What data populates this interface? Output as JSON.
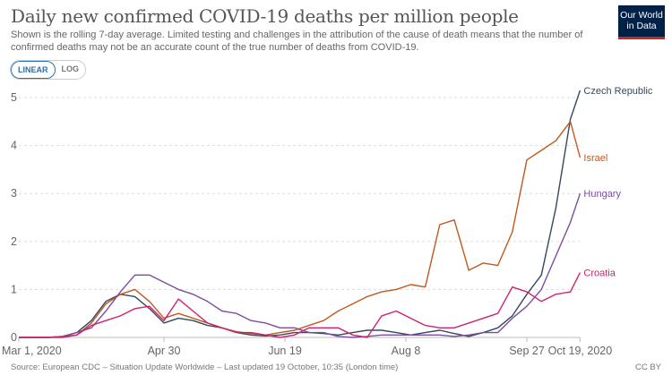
{
  "header": {
    "title": "Daily new confirmed COVID-19 deaths per million people",
    "subtitle": "Shown is the rolling 7-day average. Limited testing and challenges in the attribution of the cause of death means that the number of confirmed deaths may not be an accurate count of the true number of deaths from COVID-19.",
    "logo_text": "Our World in Data"
  },
  "controls": {
    "linear_label": "LINEAR",
    "log_label": "LOG",
    "selected": "LINEAR"
  },
  "footer": {
    "source": "Source: European CDC – Situation Update Worldwide – Last updated 19 October, 10:35 (London time)",
    "license": "CC BY"
  },
  "chart_data": {
    "type": "line",
    "title": "Daily new confirmed COVID-19 deaths per million people",
    "ylim": [
      0,
      5
    ],
    "y_ticks": [
      "0",
      "1",
      "2",
      "3",
      "4",
      "5"
    ],
    "x_ticks": [
      {
        "date": "2020-03-01",
        "label": "Mar 1, 2020"
      },
      {
        "date": "2020-04-30",
        "label": "Apr 30"
      },
      {
        "date": "2020-06-19",
        "label": "Jun 19"
      },
      {
        "date": "2020-08-08",
        "label": "Aug 8"
      },
      {
        "date": "2020-09-27",
        "label": "Sep 27"
      },
      {
        "date": "2020-10-19",
        "label": "Oct 19, 2020"
      }
    ],
    "grid": "horizontal dashed",
    "legend": "right, labels at line ends",
    "x": [
      "2020-03-01",
      "2020-03-07",
      "2020-03-13",
      "2020-03-19",
      "2020-03-25",
      "2020-03-31",
      "2020-04-06",
      "2020-04-12",
      "2020-04-18",
      "2020-04-24",
      "2020-04-30",
      "2020-05-06",
      "2020-05-12",
      "2020-05-18",
      "2020-05-24",
      "2020-05-30",
      "2020-06-05",
      "2020-06-11",
      "2020-06-17",
      "2020-06-23",
      "2020-06-29",
      "2020-07-05",
      "2020-07-11",
      "2020-07-17",
      "2020-07-23",
      "2020-07-29",
      "2020-08-04",
      "2020-08-10",
      "2020-08-16",
      "2020-08-22",
      "2020-08-28",
      "2020-09-03",
      "2020-09-09",
      "2020-09-15",
      "2020-09-21",
      "2020-09-27",
      "2020-10-03",
      "2020-10-09",
      "2020-10-15",
      "2020-10-19"
    ],
    "series": [
      {
        "name": "Czech Republic",
        "color": "#34495e",
        "values": [
          0,
          0,
          0,
          0.02,
          0.1,
          0.35,
          0.75,
          0.9,
          0.85,
          0.6,
          0.3,
          0.4,
          0.35,
          0.25,
          0.2,
          0.1,
          0.05,
          0.03,
          0.05,
          0.1,
          0.1,
          0.08,
          0.05,
          0.1,
          0.15,
          0.15,
          0.1,
          0.05,
          0.1,
          0.15,
          0.08,
          0.02,
          0.1,
          0.2,
          0.45,
          0.9,
          1.3,
          2.7,
          4.55,
          5.15
        ]
      },
      {
        "name": "Israel",
        "color": "#be5a1e",
        "values": [
          0,
          0,
          0,
          0.02,
          0.05,
          0.3,
          0.7,
          0.9,
          1.0,
          0.75,
          0.4,
          0.5,
          0.4,
          0.3,
          0.2,
          0.12,
          0.08,
          0.05,
          0.1,
          0.15,
          0.25,
          0.35,
          0.55,
          0.7,
          0.85,
          0.95,
          1.0,
          1.1,
          1.05,
          2.35,
          2.45,
          1.4,
          1.55,
          1.5,
          2.2,
          3.7,
          3.9,
          4.1,
          4.5,
          3.75
        ]
      },
      {
        "name": "Hungary",
        "color": "#7b4ca0",
        "values": [
          0,
          0,
          0,
          0.02,
          0.1,
          0.2,
          0.55,
          0.95,
          1.3,
          1.3,
          1.15,
          1.0,
          0.9,
          0.75,
          0.55,
          0.5,
          0.35,
          0.3,
          0.2,
          0.2,
          0.1,
          0.1,
          0.02,
          0,
          0.02,
          0.05,
          0.05,
          0.05,
          0.05,
          0.05,
          0.02,
          0.05,
          0.1,
          0.1,
          0.4,
          0.65,
          1.0,
          1.7,
          2.4,
          3.0
        ]
      },
      {
        "name": "Croatia",
        "color": "#d0216e",
        "values": [
          0,
          0,
          0,
          0,
          0.05,
          0.25,
          0.35,
          0.45,
          0.6,
          0.65,
          0.35,
          0.8,
          0.55,
          0.3,
          0.2,
          0.1,
          0.1,
          0.05,
          0,
          0.05,
          0.2,
          0.2,
          0.2,
          0.05,
          0,
          0.45,
          0.55,
          0.4,
          0.25,
          0.2,
          0.2,
          0.3,
          0.4,
          0.5,
          1.05,
          0.95,
          0.75,
          0.9,
          0.95,
          1.35
        ]
      }
    ]
  }
}
